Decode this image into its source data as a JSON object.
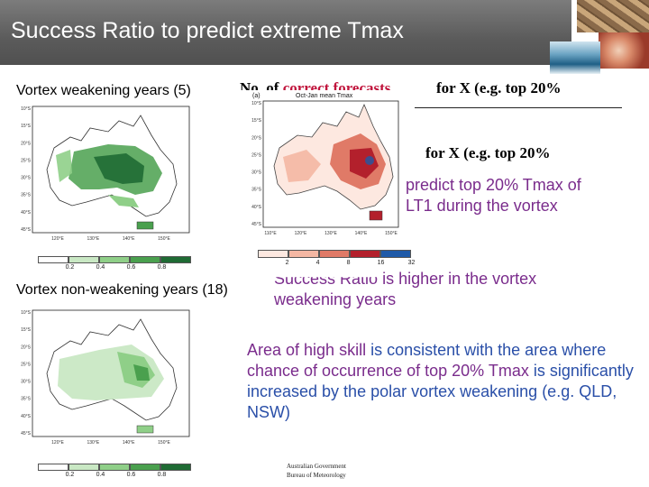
{
  "slide": {
    "title": "Success Ratio to predict extreme Tmax",
    "label_weakening": "Vortex weakening years (5)",
    "label_nonweakening": "Vortex non-weakening years (18)",
    "heading_part1": "No. of",
    "heading_red": "correct forecasts",
    "heading_part2": "for X (e.g. top 20%",
    "heading_repeat": "for X (e.g. top 20%",
    "para1_line1": "predict top 20% Tmax of",
    "para1_line2": "LT1 during the vortex",
    "para2_line1_visible": "Success Ratio",
    "para2_line1_rest": "is higher in the vortex",
    "para2_line2": "weakening years",
    "para3_a": "Area of high skill",
    "para3_b": "is consistent with the area where",
    "para3_c": "chance of occurrence of top 20% Tmax",
    "para3_d": "is significantly increased by the polar vortex weakening (e.g. QLD, NSW)",
    "logo_line1": "Australian Government",
    "logo_line2": "Bureau of Meteorology"
  },
  "overlay_map": {
    "panel_label": "(a)",
    "title": "Oct-Jan mean Tmax",
    "lat_ticks": [
      "10°S",
      "15°S",
      "20°S",
      "25°S",
      "30°S",
      "35°S",
      "40°S",
      "45°S"
    ],
    "lon_ticks": [
      "110°E",
      "120°E",
      "130°E",
      "140°E",
      "150°E"
    ],
    "colorbar_ticks": [
      "2",
      "4",
      "8",
      "16",
      "32"
    ],
    "colors": [
      "#fde8e0",
      "#f4b7a3",
      "#e07a67",
      "#b3202c",
      "#1f5aa8"
    ]
  },
  "map_top": {
    "lat_ticks": [
      "10°S",
      "15°S",
      "20°S",
      "25°S",
      "30°S",
      "35°S",
      "40°S",
      "45°S"
    ],
    "lon_ticks": [
      "120°E",
      "130°E",
      "140°E",
      "150°E"
    ],
    "colorbar_ticks": [
      "0.2",
      "0.4",
      "0.6",
      "0.8"
    ],
    "colors": [
      "#ffffff",
      "#c9e8c4",
      "#8fcf88",
      "#4aa04e",
      "#1f6b34"
    ]
  },
  "map_bottom": {
    "lat_ticks": [
      "10°S",
      "15°S",
      "20°S",
      "25°S",
      "30°S",
      "35°S",
      "40°S",
      "45°S"
    ],
    "lon_ticks": [
      "120°E",
      "130°E",
      "140°E",
      "150°E"
    ],
    "colorbar_ticks": [
      "0.2",
      "0.4",
      "0.6",
      "0.8"
    ],
    "colors": [
      "#ffffff",
      "#c9e8c4",
      "#8fcf88",
      "#4aa04e",
      "#1f6b34"
    ]
  }
}
